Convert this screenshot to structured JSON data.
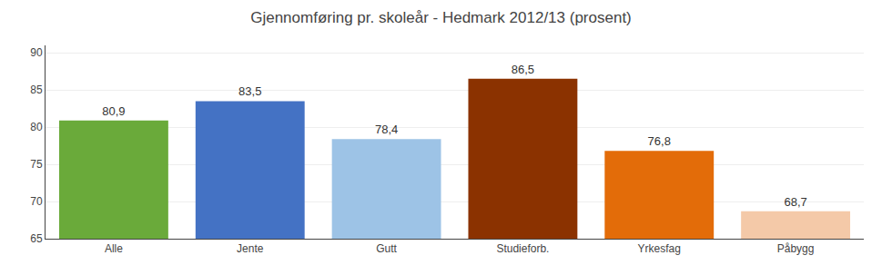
{
  "chart_data": {
    "type": "bar",
    "title": "Gjennomføring pr. skoleår - Hedmark 2012/13 (prosent)",
    "categories": [
      "Alle",
      "Jente",
      "Gutt",
      "Studieforb.",
      "Yrkesfag",
      "Påbygg"
    ],
    "values": [
      80.9,
      83.5,
      78.4,
      86.5,
      76.8,
      68.7
    ],
    "value_labels": [
      "80,9",
      "83,5",
      "78,4",
      "86,5",
      "76,8",
      "68,7"
    ],
    "data_labels": true,
    "colors": [
      "#6aaa3a",
      "#4472c4",
      "#9dc3e6",
      "#8b3200",
      "#e36c09",
      "#f4c9a8"
    ],
    "ylim": [
      65,
      91
    ],
    "yticks": [
      65,
      70,
      75,
      80,
      85,
      90
    ],
    "grid": true
  }
}
